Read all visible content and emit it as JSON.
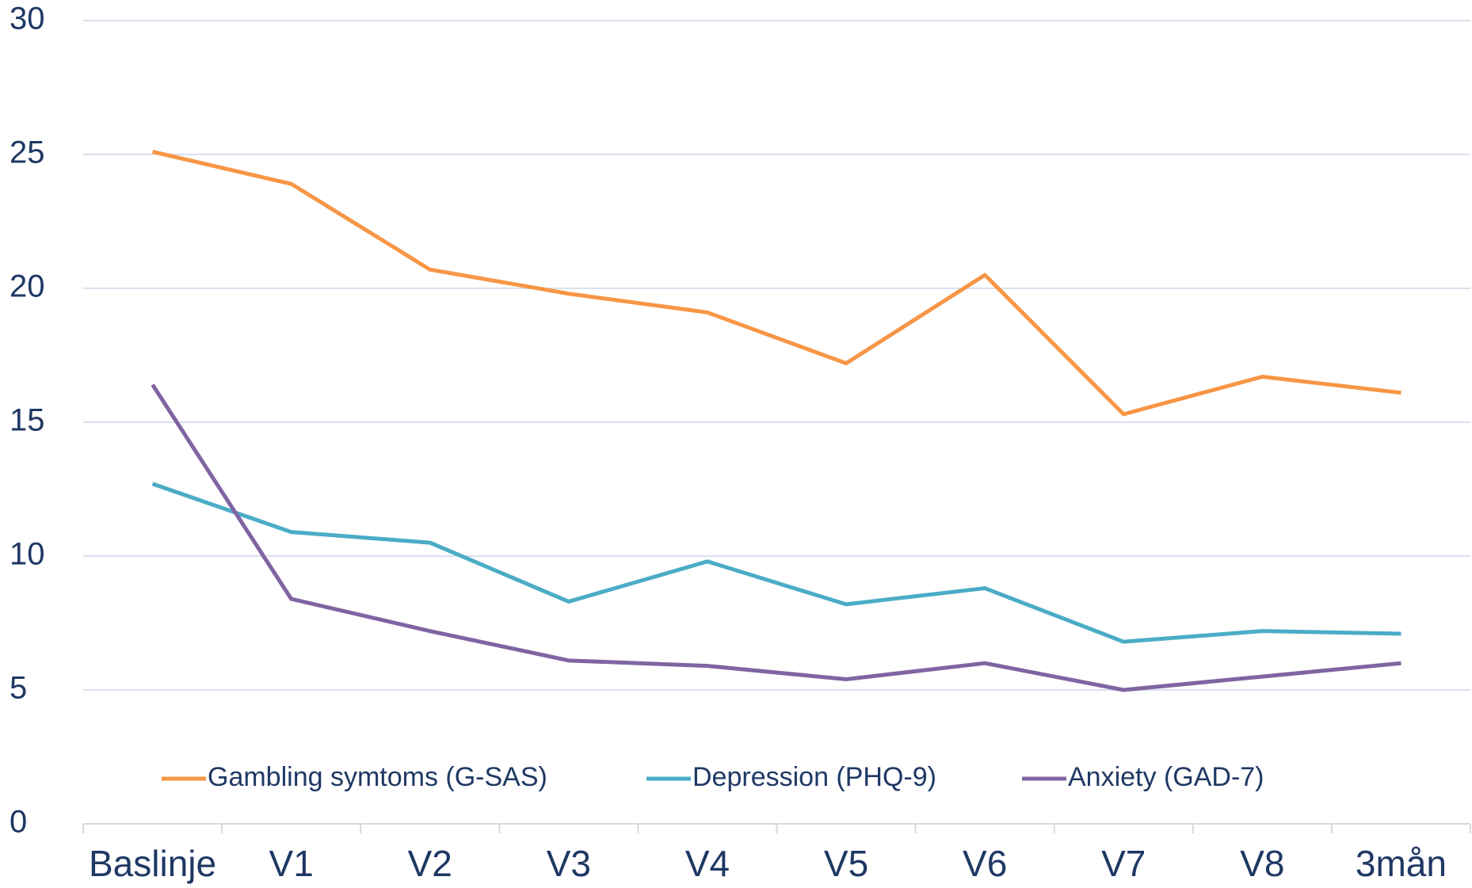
{
  "chart_data": {
    "type": "line",
    "categories": [
      "Baslinje",
      "V1",
      "V2",
      "V3",
      "V4",
      "V5",
      "V6",
      "V7",
      "V8",
      "3mån"
    ],
    "series": [
      {
        "name": "Gambling symtoms (G-SAS)",
        "color": "#f79646",
        "values": [
          25.1,
          23.9,
          20.7,
          19.8,
          19.1,
          17.2,
          20.5,
          15.3,
          16.7,
          16.1
        ]
      },
      {
        "name": "Depression (PHQ-9)",
        "color": "#4bacc6",
        "values": [
          12.7,
          10.9,
          10.5,
          8.3,
          9.8,
          8.2,
          8.8,
          6.8,
          7.2,
          7.1
        ]
      },
      {
        "name": "Anxiety (GAD-7)",
        "color": "#8064a2",
        "values": [
          16.4,
          8.4,
          7.2,
          6.1,
          5.9,
          5.4,
          6.0,
          5.0,
          5.5,
          6.0
        ]
      }
    ],
    "ylim": [
      0,
      30
    ],
    "yticks": [
      0,
      5,
      10,
      15,
      20,
      25,
      30
    ],
    "grid": true,
    "legend": "bottom"
  }
}
